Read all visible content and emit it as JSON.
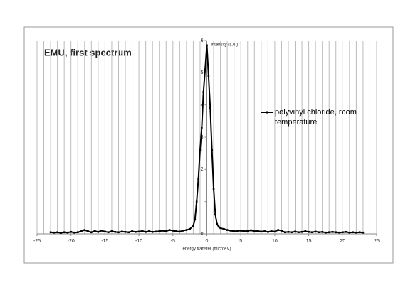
{
  "chart_data": {
    "type": "line",
    "title": "EMU, first spectrum",
    "x_label": "energy transfer (microeV)",
    "y_label": "intensity (a.u.)",
    "xlim": [
      -25,
      25
    ],
    "ylim": [
      0,
      6
    ],
    "xticks": [
      -25,
      -20,
      -15,
      -10,
      -5,
      0,
      5,
      10,
      15,
      20,
      25
    ],
    "yticks": [
      0,
      1,
      2,
      3,
      4,
      5,
      6
    ],
    "xgrid": [
      -25,
      -24,
      -23,
      -22,
      -21,
      -20,
      -19,
      -18,
      -17,
      -16,
      -15,
      -14,
      -13,
      -12,
      -11,
      -10,
      -9,
      -8,
      -7,
      -6,
      -5,
      -4,
      -3,
      -2,
      -1,
      0,
      1,
      2,
      3,
      4,
      5,
      6,
      7,
      8,
      9,
      10,
      11,
      12,
      13,
      14,
      15,
      16,
      17,
      18,
      19,
      20,
      21,
      22,
      23,
      24,
      25
    ],
    "grid": true,
    "legend": "right",
    "series": [
      {
        "name": "polyvinyl chloride, room temperature",
        "color": "#000000",
        "x": [
          -23,
          -22.5,
          -22,
          -21.5,
          -21,
          -20.5,
          -20,
          -19.5,
          -19,
          -18.5,
          -18,
          -17.5,
          -17,
          -16.5,
          -16,
          -15.5,
          -15,
          -14.5,
          -14,
          -13.5,
          -13,
          -12.5,
          -12,
          -11.5,
          -11,
          -10.5,
          -10,
          -9.5,
          -9,
          -8.5,
          -8,
          -7.5,
          -7,
          -6.5,
          -6,
          -5.5,
          -5,
          -4.5,
          -4,
          -3.5,
          -3,
          -2.5,
          -2,
          -1.75,
          -1.5,
          -1.25,
          -1,
          -0.75,
          -0.5,
          -0.25,
          0,
          0.25,
          0.5,
          0.75,
          1,
          1.25,
          1.5,
          1.75,
          2,
          2.5,
          3,
          3.5,
          4,
          4.5,
          5,
          5.5,
          6,
          6.5,
          7,
          7.5,
          8,
          8.5,
          9,
          9.5,
          10,
          10.5,
          11,
          11.5,
          12,
          12.5,
          13,
          13.5,
          14,
          14.5,
          15,
          15.5,
          16,
          16.5,
          17,
          17.5,
          18,
          18.5,
          19,
          19.5,
          20,
          20.5,
          21,
          21.5,
          22,
          22.5,
          23
        ],
        "values": [
          0.05,
          0.04,
          0.05,
          0.03,
          0.05,
          0.04,
          0.06,
          0.04,
          0.05,
          0.08,
          0.12,
          0.08,
          0.05,
          0.09,
          0.06,
          0.1,
          0.07,
          0.05,
          0.08,
          0.06,
          0.05,
          0.07,
          0.06,
          0.05,
          0.08,
          0.06,
          0.07,
          0.09,
          0.06,
          0.08,
          0.06,
          0.07,
          0.08,
          0.1,
          0.08,
          0.12,
          0.1,
          0.08,
          0.07,
          0.1,
          0.12,
          0.15,
          0.25,
          0.45,
          1.0,
          1.7,
          2.6,
          3.3,
          4.4,
          5.1,
          5.85,
          4.9,
          3.9,
          2.6,
          1.4,
          0.6,
          0.3,
          0.22,
          0.18,
          0.15,
          0.12,
          0.1,
          0.08,
          0.09,
          0.1,
          0.08,
          0.09,
          0.11,
          0.08,
          0.09,
          0.07,
          0.08,
          0.06,
          0.08,
          0.07,
          0.12,
          0.1,
          0.05,
          0.06,
          0.05,
          0.07,
          0.05,
          0.06,
          0.08,
          0.06,
          0.05,
          0.07,
          0.05,
          0.06,
          0.04,
          0.05,
          0.06,
          0.05,
          0.04,
          0.05,
          0.06,
          0.04,
          0.05,
          0.04,
          0.05,
          0.04
        ]
      }
    ]
  }
}
